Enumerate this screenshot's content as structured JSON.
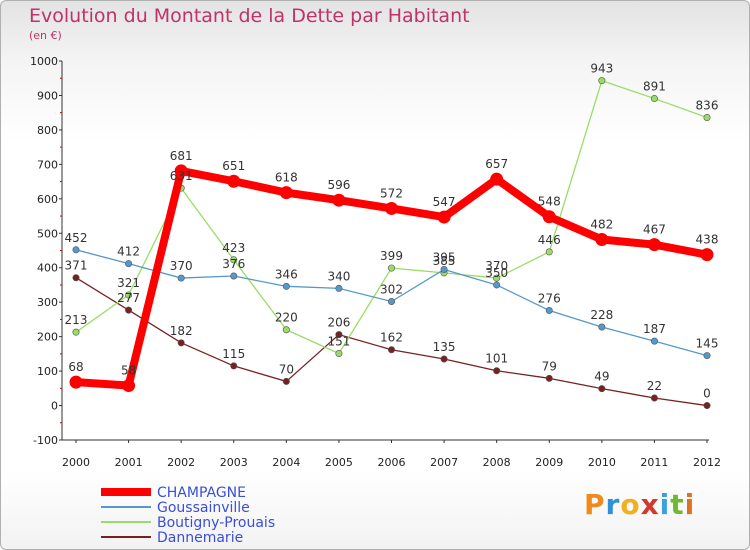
{
  "page": {
    "logo": "Proxiti"
  },
  "chart_data": {
    "type": "line",
    "title": "Evolution du Montant de la Dette par Habitant",
    "subtitle": "(en €)",
    "xlabel": "",
    "ylabel": "",
    "ylim": [
      -100,
      1000
    ],
    "yticks": [
      -100,
      0,
      100,
      200,
      300,
      400,
      500,
      600,
      700,
      800,
      900,
      1000
    ],
    "categories": [
      "2000",
      "2001",
      "2002",
      "2003",
      "2004",
      "2005",
      "2006",
      "2007",
      "2008",
      "2009",
      "2010",
      "2011",
      "2012"
    ],
    "grid": false,
    "legend_position": "bottom-left",
    "series": [
      {
        "name": "CHAMPAGNE",
        "color": "#ff0000",
        "values": [
          68,
          58,
          681,
          651,
          618,
          596,
          572,
          547,
          657,
          548,
          482,
          467,
          438
        ]
      },
      {
        "name": "Goussainville",
        "color": "#5599cc",
        "values": [
          452,
          412,
          370,
          376,
          346,
          340,
          302,
          395,
          350,
          276,
          228,
          187,
          145
        ]
      },
      {
        "name": "Boutigny-Prouais",
        "color": "#99dd66",
        "values": [
          213,
          321,
          631,
          423,
          220,
          151,
          399,
          385,
          370,
          446,
          943,
          891,
          836
        ]
      },
      {
        "name": "Dannemarie",
        "color": "#772222",
        "values": [
          371,
          277,
          182,
          115,
          70,
          206,
          162,
          135,
          101,
          79,
          49,
          22,
          0
        ]
      }
    ]
  }
}
